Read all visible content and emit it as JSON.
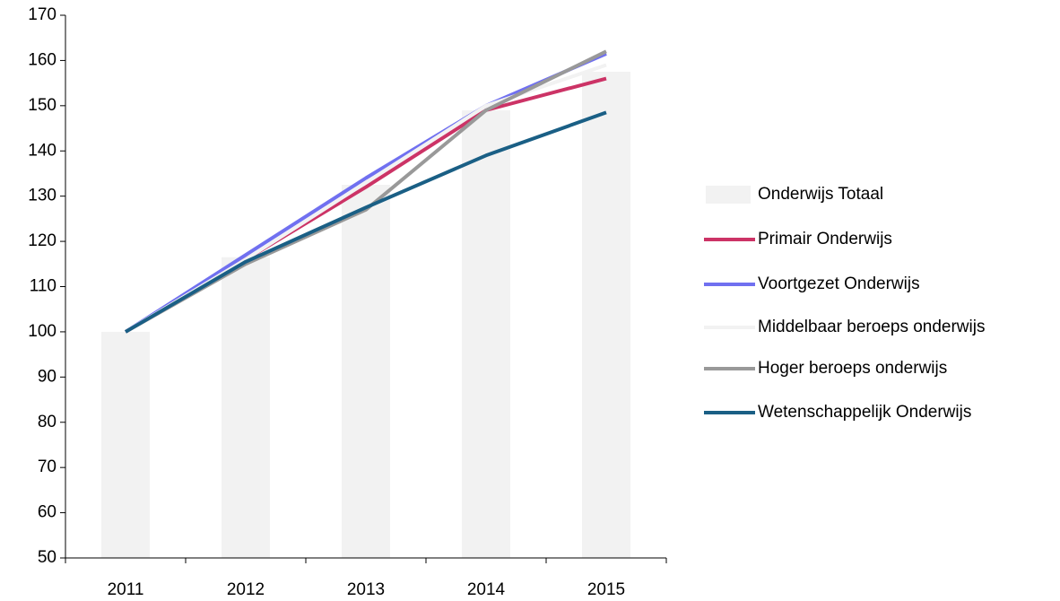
{
  "chart_data": {
    "type": "bar-line",
    "categories": [
      "2011",
      "2012",
      "2013",
      "2014",
      "2015"
    ],
    "bar_series": {
      "name": "Onderwijs Totaal",
      "color": "#f2f2f2",
      "values": [
        100,
        116.5,
        132.5,
        149,
        157.5
      ]
    },
    "series": [
      {
        "name": "Primair Onderwijs",
        "color": "#cc3366",
        "values": [
          100,
          116,
          132,
          149,
          156
        ]
      },
      {
        "name": "Voortgezet Onderwijs",
        "color": "#7070f0",
        "values": [
          100,
          117,
          134,
          150,
          161.5
        ]
      },
      {
        "name": "Middelbaar beroeps onderwijs",
        "color": "#f2f2f2",
        "values": [
          100,
          116,
          133,
          150,
          159
        ]
      },
      {
        "name": "Hoger beroeps onderwijs",
        "color": "#999999",
        "values": [
          100,
          115,
          127,
          149,
          162
        ]
      },
      {
        "name": "Wetenschappelijk Onderwijs",
        "color": "#1a5f85",
        "values": [
          100,
          115.5,
          127.5,
          139,
          148.5
        ]
      }
    ],
    "ylim": [
      50,
      170
    ],
    "yticks": [
      50,
      60,
      70,
      80,
      90,
      100,
      110,
      120,
      130,
      140,
      150,
      160,
      170
    ],
    "grid": false,
    "legend": "right"
  }
}
